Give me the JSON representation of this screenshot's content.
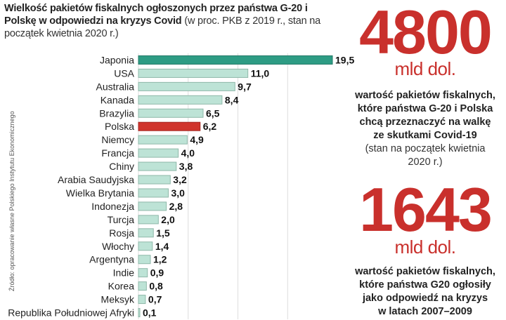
{
  "title": {
    "bold": "Wielkość pakietów fiskalnych ogłoszonych przez państwa G-20 i Polskę w odpowiedzi na kryzys Covid",
    "note": "(w proc. PKB z 2019 r., stan na początek kwietnia 2020 r.)"
  },
  "source": "Źródło: opracowanie własne Polskiego Instytutu Ekonomicznego",
  "colors": {
    "highlight_max": "#2e9c84",
    "highlight_pl": "#d0342c",
    "bar": "#bde3d6",
    "bar_stroke": "#8fb8a9"
  },
  "chart_data": {
    "type": "bar",
    "orientation": "horizontal",
    "categories": [
      "Japonia",
      "USA",
      "Australia",
      "Kanada",
      "Brazylia",
      "Polska",
      "Niemcy",
      "Francja",
      "Chiny",
      "Arabia Saudyjska",
      "Wielka Brytania",
      "Indonezja",
      "Turcja",
      "Rosja",
      "Włochy",
      "Argentyna",
      "Indie",
      "Korea",
      "Meksyk",
      "Republika Południowej Afryki"
    ],
    "values": [
      19.5,
      11.0,
      9.7,
      8.4,
      6.5,
      6.2,
      4.9,
      4.0,
      3.8,
      3.2,
      3.0,
      2.8,
      2.0,
      1.5,
      1.4,
      1.2,
      0.9,
      0.8,
      0.7,
      0.1
    ],
    "value_labels": [
      "19,5",
      "11,0",
      "9,7",
      "8,4",
      "6,5",
      "6,2",
      "4,9",
      "4,0",
      "3,8",
      "3,2",
      "3,0",
      "2,8",
      "2,0",
      "1,5",
      "1,4",
      "1,2",
      "0,9",
      "0,8",
      "0,7",
      "0,1"
    ],
    "highlight": {
      "Japonia": "max",
      "Polska": "pl"
    },
    "xlim": [
      0,
      20
    ],
    "grid": true
  },
  "stats": [
    {
      "number": "4800",
      "unit": "mld dol.",
      "desc_bold": [
        "wartość pakietów fiskalnych,",
        "które państwa G-20 i Polska",
        "chcą przeznaczyć na walkę",
        "ze skutkami Covid-19"
      ],
      "desc_note": [
        "(stan na początek kwietnia",
        "2020 r.)"
      ]
    },
    {
      "number": "1643",
      "unit": "mld dol.",
      "desc_bold": [
        "wartość pakietów fiskalnych,",
        "które państwa G20 ogłosiły",
        "jako odpowiedź na kryzys",
        "w latach 2007–2009"
      ],
      "desc_note": []
    }
  ]
}
